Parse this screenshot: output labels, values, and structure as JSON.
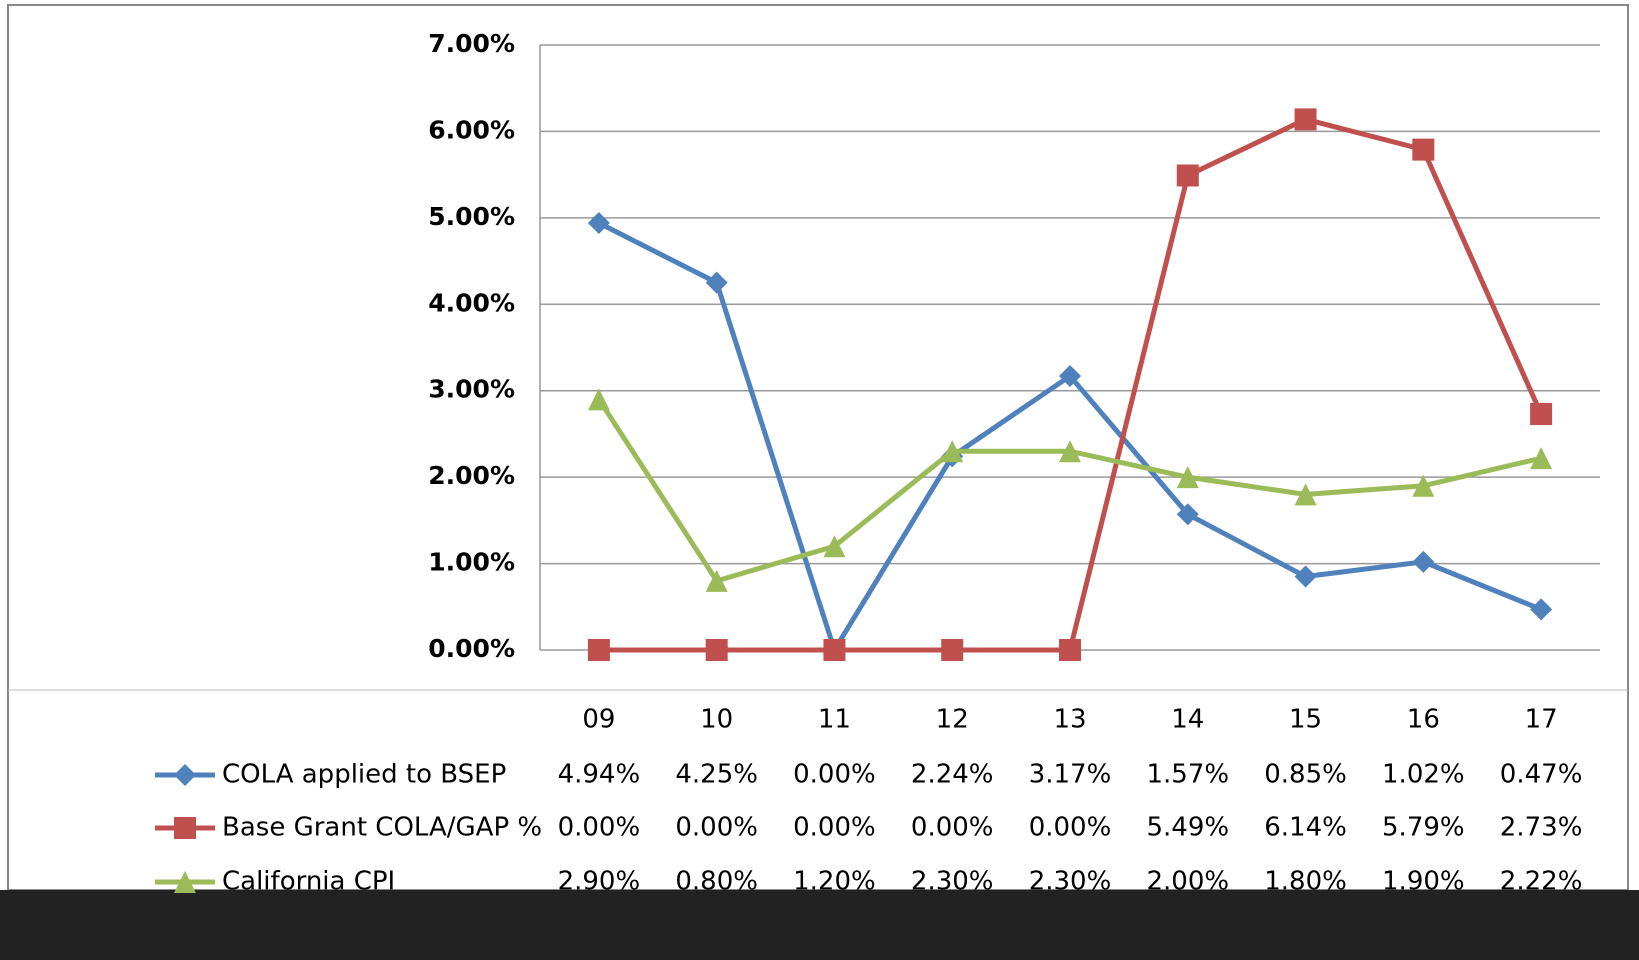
{
  "chart_data": {
    "type": "line",
    "categories": [
      "09",
      "10",
      "11",
      "12",
      "13",
      "14",
      "15",
      "16",
      "17"
    ],
    "series": [
      {
        "name": "COLA applied to BSEP",
        "color": "#4f81bd",
        "marker": "diamond",
        "values": [
          4.94,
          4.25,
          0,
          2.24,
          3.17,
          1.57,
          0.85,
          1.02,
          0.47
        ],
        "value_labels": [
          "4.94%",
          "4.25%",
          "0.00%",
          "2.24%",
          "3.17%",
          "1.57%",
          "0.85%",
          "1.02%",
          "0.47%"
        ]
      },
      {
        "name": "Base Grant COLA/GAP %",
        "color": "#c0504d",
        "marker": "square",
        "values": [
          0,
          0,
          0,
          0,
          0,
          5.49,
          6.14,
          5.79,
          2.73
        ],
        "value_labels": [
          "0.00%",
          "0.00%",
          "0.00%",
          "0.00%",
          "0.00%",
          "5.49%",
          "6.14%",
          "5.79%",
          "2.73%"
        ]
      },
      {
        "name": "California CPI",
        "color": "#9bbb59",
        "marker": "triangle",
        "values": [
          2.9,
          0.8,
          1.2,
          2.3,
          2.3,
          2.0,
          1.8,
          1.9,
          2.22
        ],
        "value_labels": [
          "2.90%",
          "0.80%",
          "1.20%",
          "2.30%",
          "2.30%",
          "2.00%",
          "1.80%",
          "1.90%",
          "2.22%"
        ]
      }
    ],
    "ylim": [
      0,
      7
    ],
    "yticks": [
      {
        "value": 0,
        "label": "0.00%"
      },
      {
        "value": 1,
        "label": "1.00%"
      },
      {
        "value": 2,
        "label": "2.00%"
      },
      {
        "value": 3,
        "label": "3.00%"
      },
      {
        "value": 4,
        "label": "4.00%"
      },
      {
        "value": 5,
        "label": "5.00%"
      },
      {
        "value": 6,
        "label": "6.00%"
      },
      {
        "value": 7,
        "label": "7.00%"
      }
    ],
    "grid": true
  }
}
